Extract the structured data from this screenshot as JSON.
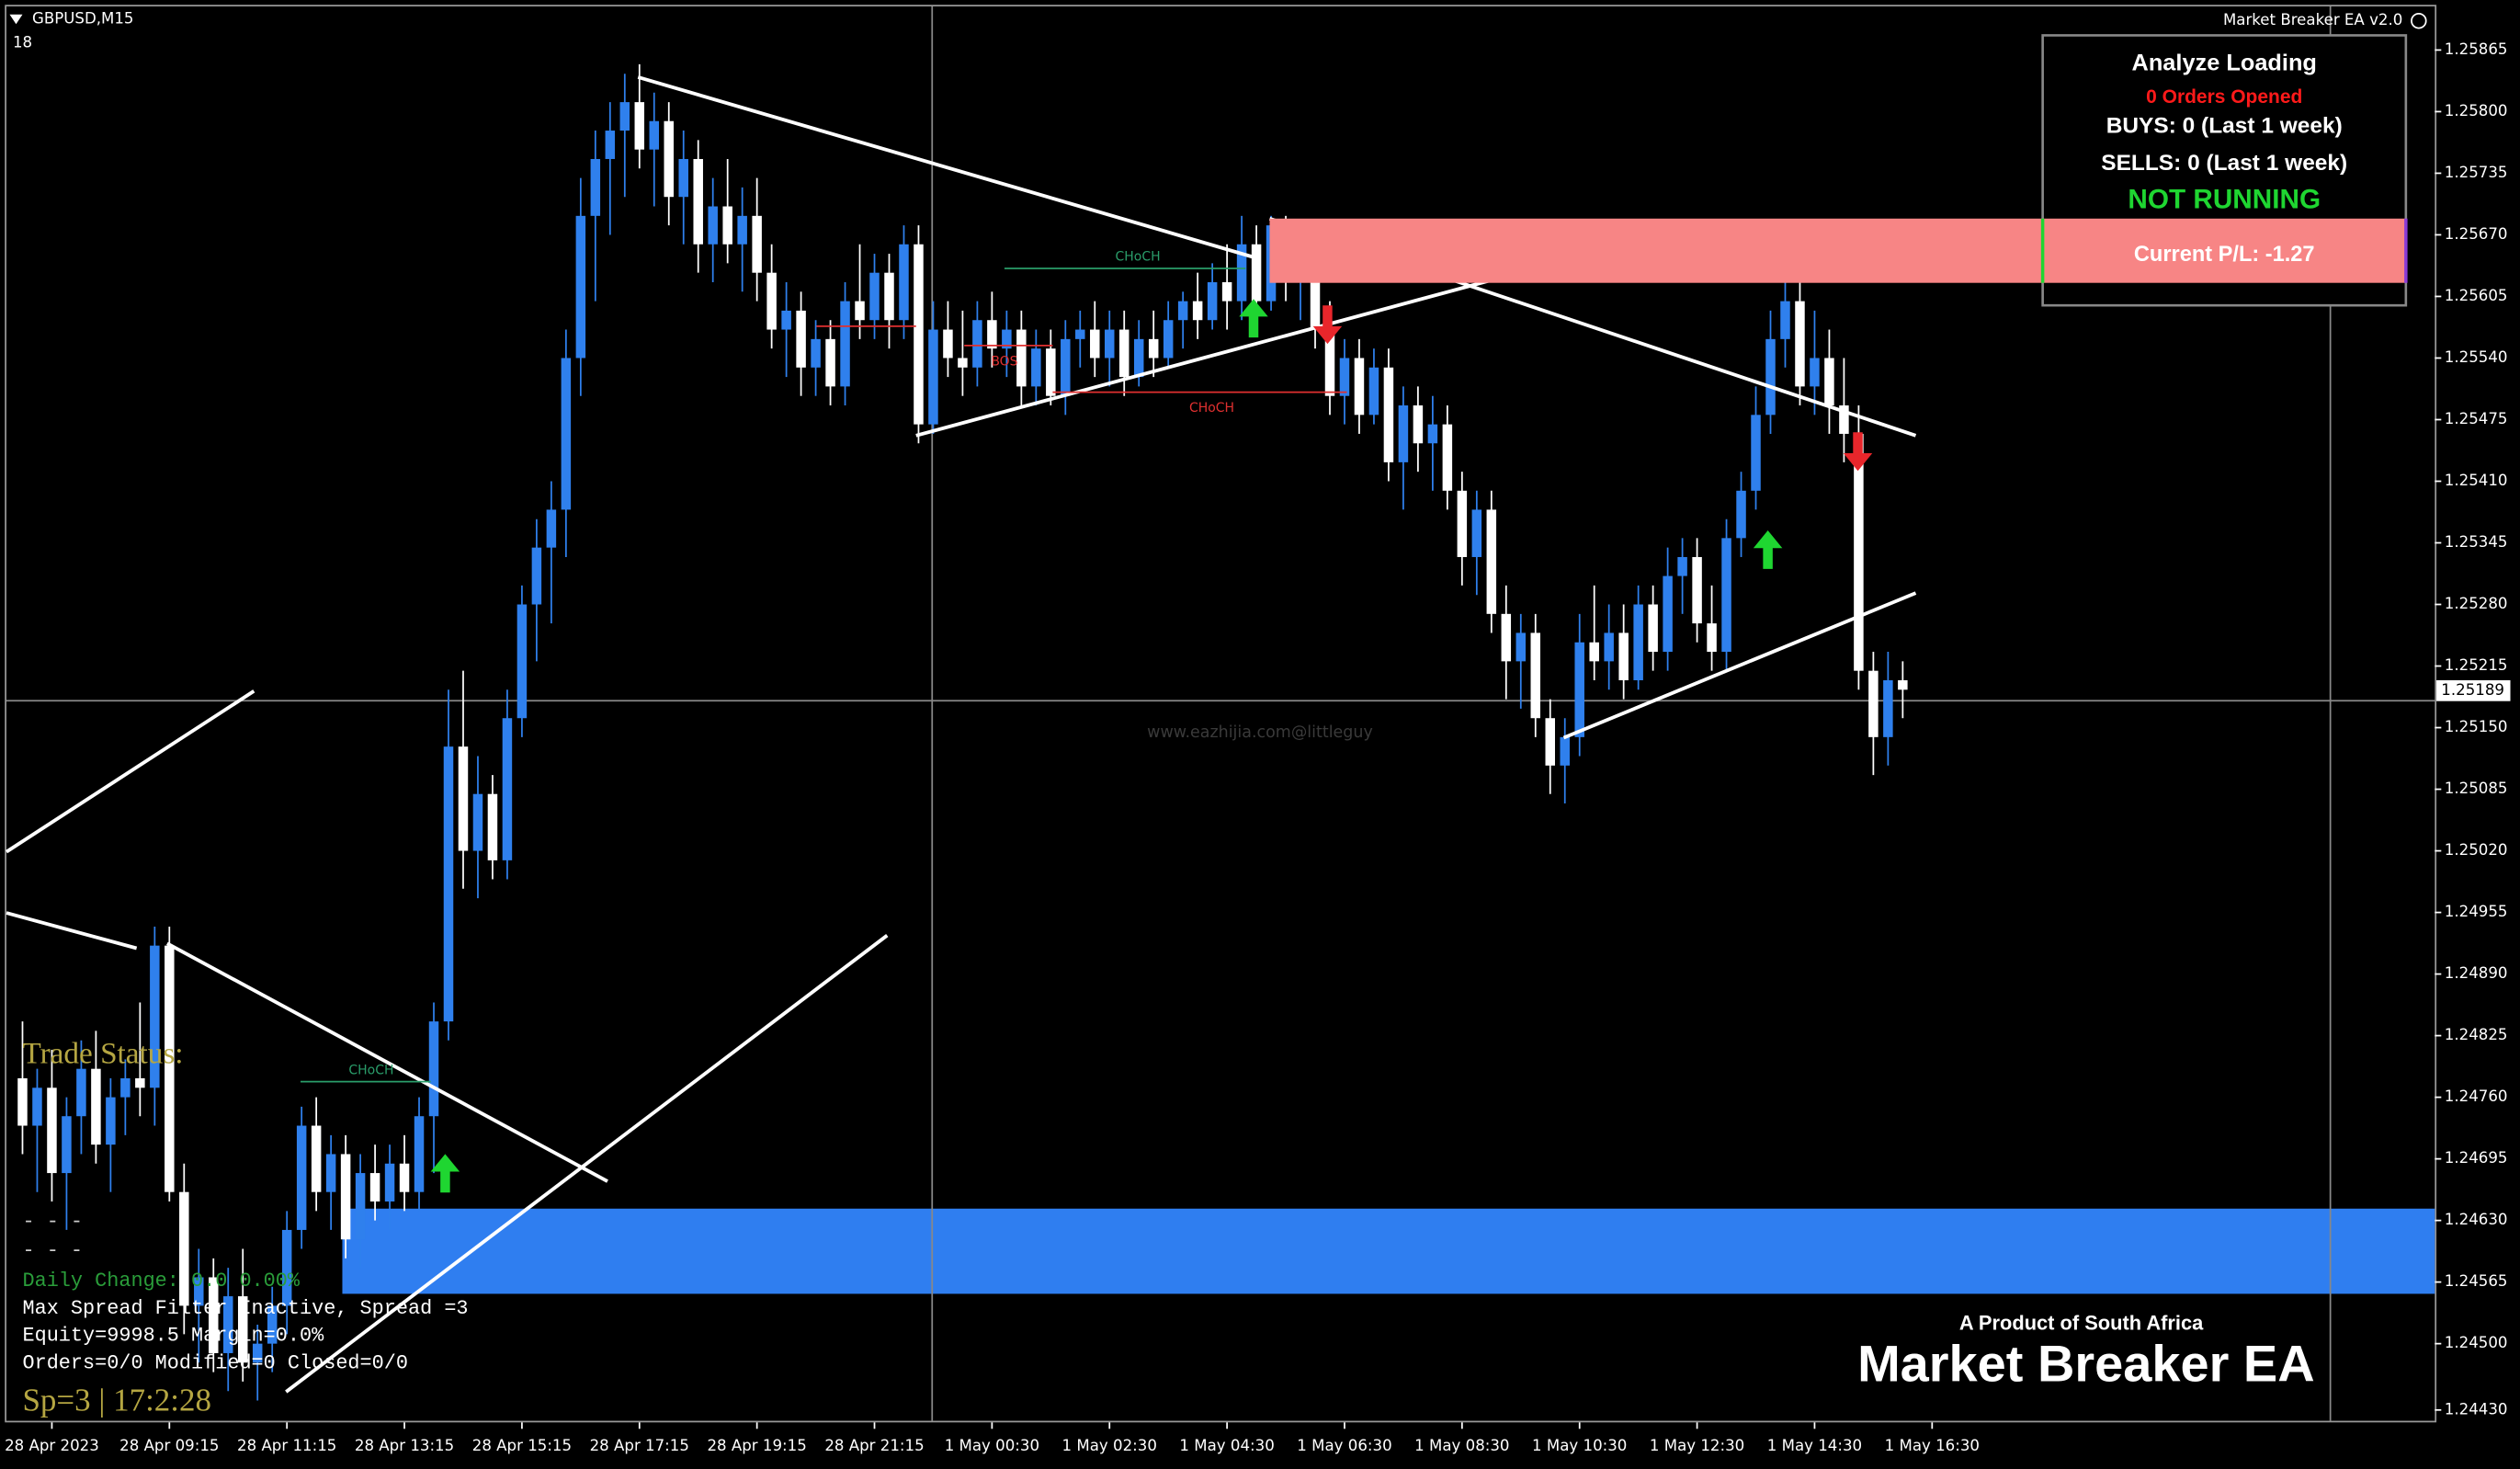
{
  "window": {
    "symbol": "GBPUSD,M15",
    "number": "18",
    "ea_name": "Market Breaker EA v2.0",
    "watermark": "www.eazhijia.com@littleguy"
  },
  "panel": {
    "title": "Analyze Loading",
    "orders": "0 Orders Opened",
    "buys": "BUYS: 0 (Last 1 week)",
    "sells": "SELLS: 0 (Last 1 week)",
    "status": "NOT RUNNING",
    "pl": "Current P/L: -1.27"
  },
  "chart": {
    "type": "candlestick",
    "up_color": "#2f80ed",
    "down_color": "#ffffff",
    "ylim": [
      1.24383,
      1.25911
    ],
    "yticks": [
      1.25865,
      {
        "value": 1.258,
        "label": "1.25800"
      },
      1.25735,
      {
        "value": 1.2567,
        "label": "1.25670"
      },
      1.25605,
      {
        "value": 1.2554,
        "label": "1.25540"
      },
      1.25475,
      {
        "value": 1.2541,
        "label": "1.25410"
      },
      1.25345,
      {
        "value": 1.2528,
        "label": "1.25280"
      },
      1.25215,
      {
        "value": 1.2515,
        "label": "1.25150"
      },
      1.25085,
      {
        "value": 1.2502,
        "label": "1.25020"
      },
      1.24955,
      {
        "value": 1.2489,
        "label": "1.24890"
      },
      1.24825,
      {
        "value": 1.2476,
        "label": "1.24760"
      },
      1.24695,
      {
        "value": 1.2463,
        "label": "1.24630"
      },
      1.24565,
      {
        "value": 1.245,
        "label": "1.24500"
      },
      {
        "value": 1.2443,
        "label": "1.24430"
      }
    ],
    "current_price": 1.25189,
    "time_labels": [
      "28 Apr 2023",
      "28 Apr 09:15",
      "28 Apr 11:15",
      "28 Apr 13:15",
      "28 Apr 15:15",
      "28 Apr 17:15",
      "28 Apr 19:15",
      "28 Apr 21:15",
      "1 May 00:30",
      "1 May 02:30",
      "1 May 04:30",
      "1 May 06:30",
      "1 May 08:30",
      "1 May 10:30",
      "1 May 12:30",
      "1 May 14:30",
      "1 May 16:30"
    ],
    "annotations": [
      "CHoCH",
      "BOS",
      "CHoCH",
      "CHoCH"
    ],
    "candles": [
      [
        1.2478,
        1.2484,
        1.247,
        1.2473
      ],
      [
        1.2473,
        1.2479,
        1.2466,
        1.2477
      ],
      [
        1.2477,
        1.2481,
        1.2465,
        1.2468
      ],
      [
        1.2468,
        1.2476,
        1.2462,
        1.2474
      ],
      [
        1.2474,
        1.2482,
        1.247,
        1.2479
      ],
      [
        1.2479,
        1.2483,
        1.2469,
        1.2471
      ],
      [
        1.2471,
        1.2478,
        1.2466,
        1.2476
      ],
      [
        1.2476,
        1.248,
        1.2472,
        1.2478
      ],
      [
        1.2478,
        1.2486,
        1.2474,
        1.2477
      ],
      [
        1.2477,
        1.2494,
        1.2473,
        1.2492
      ],
      [
        1.2492,
        1.2494,
        1.2465,
        1.2466
      ],
      [
        1.2466,
        1.2469,
        1.2451,
        1.2454
      ],
      [
        1.2454,
        1.246,
        1.2448,
        1.2457
      ],
      [
        1.2457,
        1.2459,
        1.2447,
        1.2449
      ],
      [
        1.2449,
        1.2458,
        1.2445,
        1.2455
      ],
      [
        1.2455,
        1.246,
        1.2446,
        1.2448
      ],
      [
        1.2448,
        1.2452,
        1.2444,
        1.245
      ],
      [
        1.245,
        1.2456,
        1.2447,
        1.2454
      ],
      [
        1.2454,
        1.2464,
        1.2451,
        1.2462
      ],
      [
        1.2462,
        1.2475,
        1.246,
        1.2473
      ],
      [
        1.2473,
        1.2476,
        1.2464,
        1.2466
      ],
      [
        1.2466,
        1.2472,
        1.2462,
        1.247
      ],
      [
        1.247,
        1.2472,
        1.2459,
        1.2461
      ],
      [
        1.2461,
        1.247,
        1.2458,
        1.2468
      ],
      [
        1.2468,
        1.2471,
        1.2463,
        1.2465
      ],
      [
        1.2465,
        1.2471,
        1.2462,
        1.2469
      ],
      [
        1.2469,
        1.2472,
        1.2464,
        1.2466
      ],
      [
        1.2466,
        1.2476,
        1.2464,
        1.2474
      ],
      [
        1.2474,
        1.2486,
        1.2468,
        1.2484
      ],
      [
        1.2484,
        1.2519,
        1.2482,
        1.2513
      ],
      [
        1.2513,
        1.2521,
        1.2498,
        1.2502
      ],
      [
        1.2502,
        1.2512,
        1.2497,
        1.2508
      ],
      [
        1.2508,
        1.251,
        1.2499,
        1.2501
      ],
      [
        1.2501,
        1.2519,
        1.2499,
        1.2516
      ],
      [
        1.2516,
        1.253,
        1.2514,
        1.2528
      ],
      [
        1.2528,
        1.2537,
        1.2522,
        1.2534
      ],
      [
        1.2534,
        1.2541,
        1.2526,
        1.2538
      ],
      [
        1.2538,
        1.2557,
        1.2533,
        1.2554
      ],
      [
        1.2554,
        1.2573,
        1.255,
        1.2569
      ],
      [
        1.2569,
        1.2578,
        1.256,
        1.2575
      ],
      [
        1.2575,
        1.2581,
        1.2567,
        1.2578
      ],
      [
        1.2578,
        1.2584,
        1.2571,
        1.2581
      ],
      [
        1.2581,
        1.2585,
        1.2574,
        1.2576
      ],
      [
        1.2576,
        1.2582,
        1.257,
        1.2579
      ],
      [
        1.2579,
        1.2581,
        1.2568,
        1.2571
      ],
      [
        1.2571,
        1.2578,
        1.2566,
        1.2575
      ],
      [
        1.2575,
        1.2577,
        1.2563,
        1.2566
      ],
      [
        1.2566,
        1.2573,
        1.2562,
        1.257
      ],
      [
        1.257,
        1.2575,
        1.2564,
        1.2566
      ],
      [
        1.2566,
        1.2572,
        1.2561,
        1.2569
      ],
      [
        1.2569,
        1.2573,
        1.256,
        1.2563
      ],
      [
        1.2563,
        1.2566,
        1.2555,
        1.2557
      ],
      [
        1.2557,
        1.2562,
        1.2552,
        1.2559
      ],
      [
        1.2559,
        1.2561,
        1.255,
        1.2553
      ],
      [
        1.2553,
        1.2558,
        1.255,
        1.2556
      ],
      [
        1.2556,
        1.2558,
        1.2549,
        1.2551
      ],
      [
        1.2551,
        1.2562,
        1.2549,
        1.256
      ],
      [
        1.256,
        1.2566,
        1.2556,
        1.2558
      ],
      [
        1.2558,
        1.2565,
        1.2556,
        1.2563
      ],
      [
        1.2563,
        1.2565,
        1.2555,
        1.2558
      ],
      [
        1.2558,
        1.2568,
        1.2556,
        1.2566
      ],
      [
        1.2566,
        1.2568,
        1.2545,
        1.2547
      ],
      [
        1.2547,
        1.256,
        1.2546,
        1.2557
      ],
      [
        1.2557,
        1.256,
        1.2552,
        1.2554
      ],
      [
        1.2554,
        1.2559,
        1.255,
        1.2553
      ],
      [
        1.2553,
        1.256,
        1.2551,
        1.2558
      ],
      [
        1.2558,
        1.2561,
        1.2553,
        1.2555
      ],
      [
        1.2555,
        1.2559,
        1.2552,
        1.2557
      ],
      [
        1.2557,
        1.2559,
        1.2549,
        1.2551
      ],
      [
        1.2551,
        1.2557,
        1.2549,
        1.2555
      ],
      [
        1.2555,
        1.2557,
        1.2549,
        1.255
      ],
      [
        1.255,
        1.2558,
        1.2548,
        1.2556
      ],
      [
        1.2556,
        1.2559,
        1.2553,
        1.2557
      ],
      [
        1.2557,
        1.256,
        1.2552,
        1.2554
      ],
      [
        1.2554,
        1.2559,
        1.2551,
        1.2557
      ],
      [
        1.2557,
        1.2559,
        1.255,
        1.2552
      ],
      [
        1.2552,
        1.2558,
        1.2551,
        1.2556
      ],
      [
        1.2556,
        1.2559,
        1.2552,
        1.2554
      ],
      [
        1.2554,
        1.256,
        1.2553,
        1.2558
      ],
      [
        1.2558,
        1.2561,
        1.2555,
        1.256
      ],
      [
        1.256,
        1.2563,
        1.2556,
        1.2558
      ],
      [
        1.2558,
        1.2564,
        1.2557,
        1.2562
      ],
      [
        1.2562,
        1.2566,
        1.2557,
        1.256
      ],
      [
        1.256,
        1.2569,
        1.2558,
        1.2566
      ],
      [
        1.2566,
        1.2568,
        1.2558,
        1.256
      ],
      [
        1.256,
        1.2569,
        1.2559,
        1.2568
      ],
      [
        1.2568,
        1.2569,
        1.256,
        1.2562
      ],
      [
        1.2562,
        1.2567,
        1.2558,
        1.2566
      ],
      [
        1.2566,
        1.2567,
        1.2555,
        1.2557
      ],
      [
        1.2557,
        1.256,
        1.2548,
        1.255
      ],
      [
        1.255,
        1.2556,
        1.2547,
        1.2554
      ],
      [
        1.2554,
        1.2556,
        1.2546,
        1.2548
      ],
      [
        1.2548,
        1.2555,
        1.2547,
        1.2553
      ],
      [
        1.2553,
        1.2555,
        1.2541,
        1.2543
      ],
      [
        1.2543,
        1.2551,
        1.2538,
        1.2549
      ],
      [
        1.2549,
        1.2551,
        1.2542,
        1.2545
      ],
      [
        1.2545,
        1.255,
        1.254,
        1.2547
      ],
      [
        1.2547,
        1.2549,
        1.2538,
        1.254
      ],
      [
        1.254,
        1.2542,
        1.253,
        1.2533
      ],
      [
        1.2533,
        1.254,
        1.2529,
        1.2538
      ],
      [
        1.2538,
        1.254,
        1.2525,
        1.2527
      ],
      [
        1.2527,
        1.253,
        1.2518,
        1.2522
      ],
      [
        1.2522,
        1.2527,
        1.2517,
        1.2525
      ],
      [
        1.2525,
        1.2527,
        1.2514,
        1.2516
      ],
      [
        1.2516,
        1.2518,
        1.2508,
        1.2511
      ],
      [
        1.2511,
        1.2516,
        1.2507,
        1.2514
      ],
      [
        1.2514,
        1.2527,
        1.2512,
        1.2524
      ],
      [
        1.2524,
        1.253,
        1.252,
        1.2522
      ],
      [
        1.2522,
        1.2528,
        1.2519,
        1.2525
      ],
      [
        1.2525,
        1.2528,
        1.2518,
        1.252
      ],
      [
        1.252,
        1.253,
        1.2519,
        1.2528
      ],
      [
        1.2528,
        1.253,
        1.2521,
        1.2523
      ],
      [
        1.2523,
        1.2534,
        1.2521,
        1.2531
      ],
      [
        1.2531,
        1.2535,
        1.2527,
        1.2533
      ],
      [
        1.2533,
        1.2535,
        1.2524,
        1.2526
      ],
      [
        1.2526,
        1.253,
        1.2521,
        1.2523
      ],
      [
        1.2523,
        1.2537,
        1.2521,
        1.2535
      ],
      [
        1.2535,
        1.2542,
        1.2533,
        1.254
      ],
      [
        1.254,
        1.2551,
        1.2538,
        1.2548
      ],
      [
        1.2548,
        1.2559,
        1.2546,
        1.2556
      ],
      [
        1.2556,
        1.2564,
        1.2553,
        1.256
      ],
      [
        1.256,
        1.2563,
        1.2549,
        1.2551
      ],
      [
        1.2551,
        1.2559,
        1.2548,
        1.2554
      ],
      [
        1.2554,
        1.2557,
        1.2546,
        1.2549
      ],
      [
        1.2549,
        1.2554,
        1.2543,
        1.2546
      ],
      [
        1.2546,
        1.2549,
        1.2519,
        1.2521
      ],
      [
        1.2521,
        1.2523,
        1.251,
        1.2514
      ],
      [
        1.2514,
        1.2523,
        1.2511,
        1.252
      ],
      [
        1.252,
        1.2522,
        1.2516,
        1.2519
      ]
    ]
  },
  "status": {
    "title": "Trade Status:",
    "dash1": "- - -",
    "dash2": "- - -",
    "daily": "Daily Change: 0.0 0.00%",
    "spread": "Max Spread Filter Inactive, Spread =3",
    "equity": "Equity=9998.5 Margin=0.0%",
    "orders": "Orders=0/0 Modified=0 Closed=0/0",
    "clock": "Sp=3 | 17:2:28"
  },
  "branding": {
    "tagline": "A Product of South Africa",
    "name": "Market Breaker EA"
  }
}
